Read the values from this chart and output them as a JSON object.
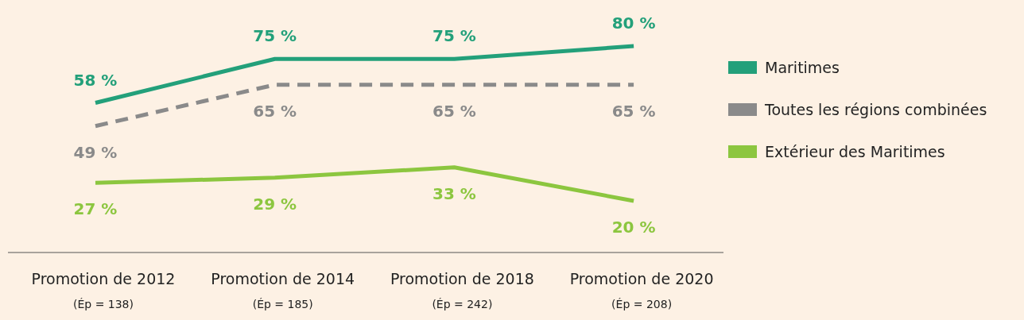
{
  "chart_data": {
    "type": "line",
    "categories": [
      "Promotion de 2012\n(Ép = 138)",
      "Promotion de 2014\n(Ép = 185)",
      "Promotion de 2018\n(Ép = 242)",
      "Promotion de 2020\n(Ép = 208)"
    ],
    "series": [
      {
        "name": "Maritimes",
        "color": "#23a07a",
        "values": [
          58,
          75,
          75,
          80
        ],
        "value_labels": [
          "58 %",
          "75 %",
          "75 %",
          "80 %"
        ]
      },
      {
        "name": "Toutes les régions combinées",
        "color": "#8a8a8a",
        "line_style": "dashed",
        "values": [
          49,
          65,
          65,
          65
        ],
        "value_labels": [
          "49 %",
          "65 %",
          "65 %",
          "65 %"
        ]
      },
      {
        "name": "Extérieur des Maritimes",
        "color": "#8cc63f",
        "values": [
          27,
          29,
          33,
          20
        ],
        "value_labels": [
          "27 %",
          "29 %",
          "33 %",
          "20 %"
        ]
      }
    ],
    "legend": "right",
    "marker": "none"
  }
}
